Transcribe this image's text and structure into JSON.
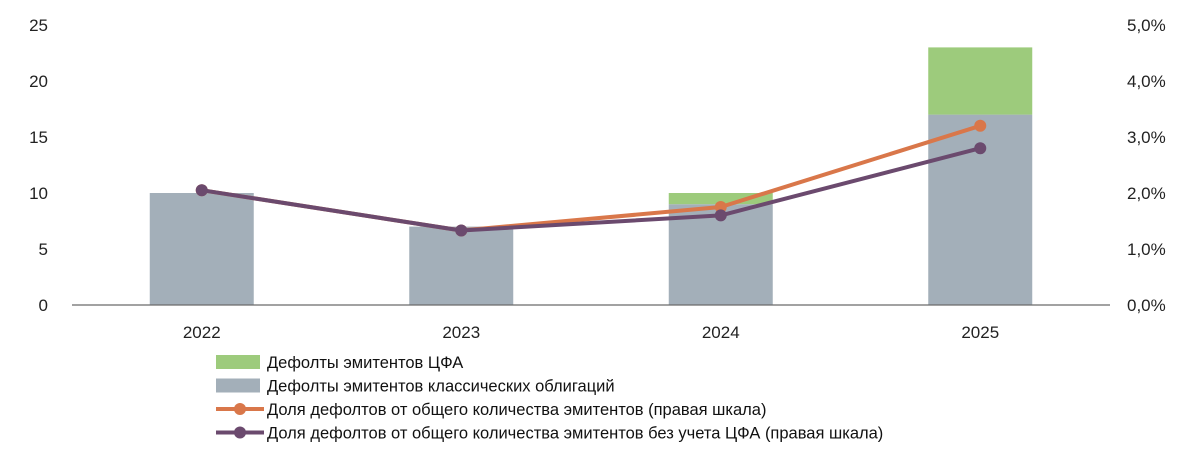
{
  "chart_data": {
    "type": "bar",
    "stacked": true,
    "categories": [
      "2022",
      "2023",
      "2024",
      "2025"
    ],
    "series": [
      {
        "name": "Дефолты эмитентов классических облигаций",
        "type": "bar",
        "axis": "left",
        "color": "#a3afb9",
        "values": [
          10,
          7,
          9,
          17
        ]
      },
      {
        "name": "Дефолты эмитентов ЦФА",
        "type": "bar",
        "axis": "left",
        "color": "#9dcb7c",
        "values": [
          0,
          0,
          1,
          6
        ]
      },
      {
        "name": "Доля дефолтов от общего количества эмитентов (правая шкала)",
        "type": "line",
        "axis": "right",
        "color": "#d9774a",
        "values": [
          2.05,
          1.33,
          1.75,
          3.2
        ]
      },
      {
        "name": "Доля дефолтов от общего количества эмитентов без учета ЦФА (правая шкала)",
        "type": "line",
        "axis": "right",
        "color": "#6b4a6e",
        "values": [
          2.05,
          1.33,
          1.6,
          2.8
        ]
      }
    ],
    "ylim_left": [
      0,
      25
    ],
    "ylim_right": [
      0,
      5
    ],
    "yticks_left": [
      "0",
      "5",
      "10",
      "15",
      "20",
      "25"
    ],
    "yticks_right": [
      "0,0%",
      "1,0%",
      "2,0%",
      "3,0%",
      "4,0%",
      "5,0%"
    ],
    "legend": [
      {
        "label": "Дефолты эмитентов ЦФА",
        "kind": "box",
        "color": "#9dcb7c"
      },
      {
        "label": "Дефолты эмитентов классических облигаций",
        "kind": "box",
        "color": "#a3afb9"
      },
      {
        "label": "Доля дефолтов от общего количества эмитентов (правая шкала)",
        "kind": "line",
        "color": "#d9774a"
      },
      {
        "label": "Доля дефолтов от общего количества эмитентов без учета ЦФА (правая шкала)",
        "kind": "line",
        "color": "#6b4a6e"
      }
    ],
    "legend_position": "bottom-left",
    "grid": false
  }
}
